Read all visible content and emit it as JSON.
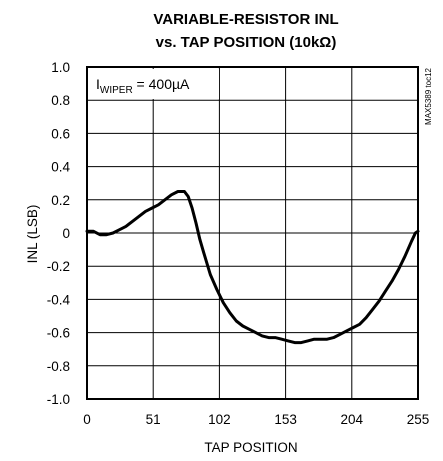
{
  "chart_data": {
    "type": "line",
    "title": "VARIABLE-RESISTOR INL",
    "subtitle": "vs. TAP POSITION (10kΩ)",
    "xlabel": "TAP POSITION",
    "ylabel": "INL (LSB)",
    "xlim": [
      0,
      255
    ],
    "ylim": [
      -1.0,
      1.0
    ],
    "x_ticks": [
      "0",
      "51",
      "102",
      "153",
      "204",
      "255"
    ],
    "y_ticks": [
      "1.0",
      "0.8",
      "0.6",
      "0.4",
      "0.2",
      "0",
      "-0.2",
      "-0.4",
      "-0.6",
      "-0.8",
      "-1.0"
    ],
    "grid": true,
    "annotation": {
      "prefix": "I",
      "subscript": "WIPER",
      "suffix": " = 400µA"
    },
    "side_note": "MAX5389 toc12",
    "series": [
      {
        "x": [
          0,
          5,
          10,
          15,
          20,
          25,
          30,
          35,
          40,
          45,
          50,
          55,
          60,
          65,
          70,
          75,
          78,
          81,
          84,
          87,
          90,
          95,
          100,
          105,
          110,
          115,
          120,
          125,
          130,
          135,
          140,
          145,
          150,
          155,
          160,
          165,
          170,
          175,
          180,
          185,
          190,
          195,
          200,
          205,
          210,
          215,
          220,
          225,
          230,
          235,
          240,
          245,
          250,
          253,
          255
        ],
        "y": [
          0.01,
          0.01,
          -0.01,
          -0.01,
          0.0,
          0.02,
          0.04,
          0.07,
          0.1,
          0.13,
          0.15,
          0.17,
          0.2,
          0.23,
          0.25,
          0.25,
          0.22,
          0.15,
          0.06,
          -0.04,
          -0.12,
          -0.25,
          -0.34,
          -0.42,
          -0.48,
          -0.53,
          -0.56,
          -0.58,
          -0.6,
          -0.62,
          -0.63,
          -0.63,
          -0.64,
          -0.65,
          -0.66,
          -0.66,
          -0.65,
          -0.64,
          -0.64,
          -0.64,
          -0.63,
          -0.61,
          -0.59,
          -0.57,
          -0.55,
          -0.51,
          -0.46,
          -0.41,
          -0.35,
          -0.29,
          -0.22,
          -0.14,
          -0.05,
          0.0,
          0.01
        ]
      }
    ]
  }
}
